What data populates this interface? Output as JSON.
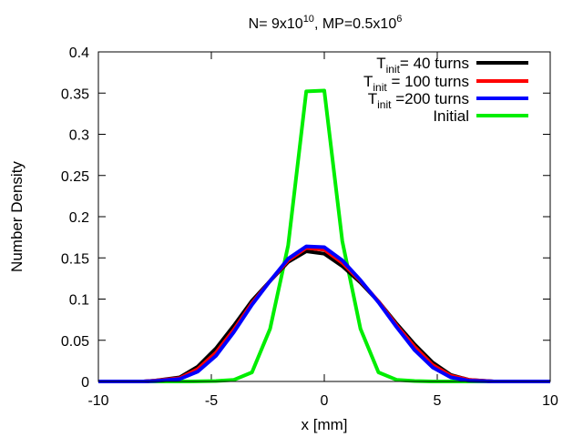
{
  "chart_data": {
    "type": "line",
    "title": {
      "prefix": "N= 9x10",
      "sup1": "10",
      "middle": ", MP=0.5x10",
      "sup2": "6"
    },
    "xlabel": "x [mm]",
    "ylabel": "Number Density",
    "xlim": [
      -10,
      10
    ],
    "ylim": [
      0,
      0.4
    ],
    "xticks": [
      -10,
      -5,
      0,
      5,
      10
    ],
    "xtick_labels": [
      "-10",
      "-5",
      "0",
      "5",
      "10"
    ],
    "yticks": [
      0,
      0.05,
      0.1,
      0.15,
      0.2,
      0.25,
      0.3,
      0.35,
      0.4
    ],
    "ytick_labels": [
      "0",
      "0.05",
      "0.1",
      "0.15",
      "0.2",
      "0.25",
      "0.3",
      "0.35",
      "0.4"
    ],
    "grid": false,
    "legend_position": "top-right",
    "series": [
      {
        "legend_T": "T",
        "legend_sub": "init",
        "legend_rest": "= 40 turns",
        "color": "#000000",
        "x": [
          -10,
          -8,
          -7.5,
          -6.4,
          -5.6,
          -4.8,
          -4.0,
          -3.2,
          -2.4,
          -1.6,
          -0.8,
          0,
          0.8,
          1.6,
          2.4,
          3.2,
          4.0,
          4.8,
          5.6,
          6.4,
          7.5,
          8,
          10
        ],
        "y": [
          0,
          0,
          0.001,
          0.005,
          0.018,
          0.04,
          0.068,
          0.098,
          0.122,
          0.145,
          0.158,
          0.155,
          0.14,
          0.12,
          0.097,
          0.07,
          0.045,
          0.023,
          0.008,
          0.002,
          0,
          0,
          0
        ]
      },
      {
        "legend_T": "T",
        "legend_sub": "init",
        "legend_rest": " = 100 turns",
        "color": "#ff0000",
        "x": [
          -10,
          -8,
          -7.5,
          -6.4,
          -5.6,
          -4.8,
          -4.0,
          -3.2,
          -2.4,
          -1.6,
          -0.8,
          0,
          0.8,
          1.6,
          2.4,
          3.2,
          4.0,
          4.8,
          5.6,
          6.4,
          7.5,
          8,
          10
        ],
        "y": [
          0,
          0,
          0.001,
          0.004,
          0.015,
          0.035,
          0.063,
          0.095,
          0.122,
          0.147,
          0.162,
          0.16,
          0.144,
          0.122,
          0.097,
          0.068,
          0.042,
          0.02,
          0.007,
          0.002,
          0,
          0,
          0
        ]
      },
      {
        "legend_T": "T",
        "legend_sub": "init",
        "legend_rest": " =200 turns",
        "color": "#0000ff",
        "x": [
          -10,
          -8,
          -7.5,
          -6.4,
          -5.6,
          -4.8,
          -4.0,
          -3.2,
          -2.4,
          -1.6,
          -0.8,
          0,
          0.8,
          1.6,
          2.4,
          3.2,
          4.0,
          4.8,
          5.6,
          6.4,
          7.5,
          8,
          10
        ],
        "y": [
          0,
          0,
          0.0005,
          0.003,
          0.012,
          0.031,
          0.06,
          0.093,
          0.122,
          0.149,
          0.164,
          0.163,
          0.147,
          0.123,
          0.096,
          0.066,
          0.038,
          0.017,
          0.005,
          0.001,
          0,
          0,
          0
        ]
      },
      {
        "legend_T": "",
        "legend_sub": "",
        "legend_rest": "Initial",
        "color": "#00ee00",
        "x": [
          -10,
          -6,
          -4.8,
          -4.0,
          -3.2,
          -2.4,
          -1.6,
          -0.8,
          0,
          0.8,
          1.6,
          2.4,
          3.2,
          4.0,
          4.8,
          6,
          10
        ],
        "y": [
          0,
          0,
          0.0005,
          0.002,
          0.011,
          0.064,
          0.165,
          0.352,
          0.353,
          0.17,
          0.064,
          0.011,
          0.002,
          0.0005,
          0,
          0,
          0
        ]
      }
    ]
  }
}
